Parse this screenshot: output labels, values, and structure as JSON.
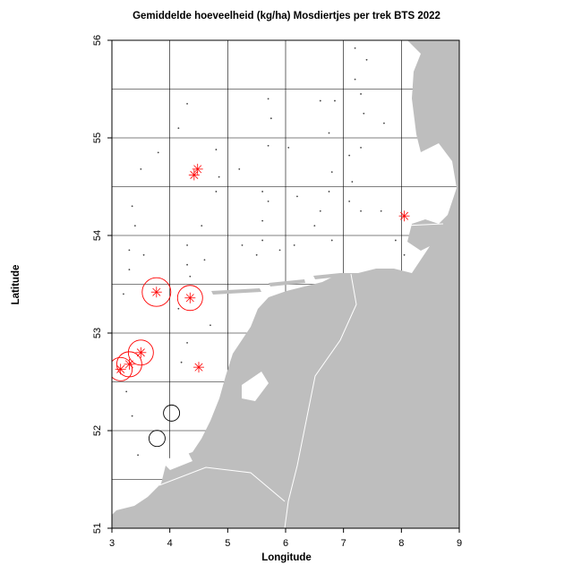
{
  "chart_data": {
    "type": "scatter",
    "title": "Gemiddelde hoeveelheid (kg/ha) Mosdiertjes per trek BTS 2022",
    "xlabel": "Longitude",
    "ylabel": "Latitude",
    "xlim": [
      3,
      9
    ],
    "ylim": [
      51,
      56
    ],
    "xticks": [
      3,
      4,
      5,
      6,
      7,
      8,
      9
    ],
    "yticks": [
      51,
      52,
      53,
      54,
      55,
      56
    ],
    "xgrid": [
      4,
      5,
      6,
      7,
      8
    ],
    "ygrid": [
      51.5,
      52,
      52.5,
      53,
      53.5,
      54,
      54.5,
      55,
      55.5
    ],
    "grid": true,
    "series": [
      {
        "color": "#444444",
        "x": [
          7.2,
          7.4,
          7.2,
          7.3,
          7.35,
          7.7,
          6.6,
          6.85,
          5.7,
          5.75,
          4.3,
          4.15,
          5.7,
          6.05,
          6.75,
          7.1,
          7.3,
          6.8,
          7.15,
          3.8,
          3.5,
          5.2,
          4.8,
          4.85,
          4.8,
          5.6,
          5.7,
          6.2,
          6.75,
          7.1,
          6.6,
          7.3,
          5.6,
          6.5,
          7.65,
          3.35,
          3.4,
          3.3,
          3.55,
          3.3,
          4.3,
          4.3,
          4.6,
          4.55,
          5.25,
          5.6,
          5.9,
          5.5,
          6.15,
          6.8,
          7.9,
          8.05,
          3.2,
          4.35,
          4.15,
          4.3,
          4.7,
          4.2,
          3.25,
          3.35,
          3.45
        ],
        "y": [
          55.92,
          55.8,
          55.6,
          55.45,
          55.25,
          55.15,
          55.38,
          55.38,
          55.4,
          55.2,
          55.35,
          55.1,
          54.92,
          54.9,
          55.05,
          54.82,
          54.9,
          54.65,
          54.55,
          54.85,
          54.68,
          54.68,
          54.88,
          54.6,
          54.45,
          54.45,
          54.35,
          54.4,
          54.45,
          54.35,
          54.25,
          54.25,
          54.15,
          54.1,
          54.25,
          54.3,
          54.1,
          53.85,
          53.8,
          53.65,
          53.9,
          53.7,
          53.75,
          54.1,
          53.9,
          53.95,
          53.85,
          53.8,
          53.9,
          53.95,
          53.95,
          53.8,
          53.4,
          53.58,
          53.25,
          52.9,
          53.08,
          52.7,
          52.4,
          52.15,
          51.75
        ],
        "size": null
      },
      {
        "color": "#ff0000",
        "x": [
          4.48,
          4.42,
          8.05,
          3.77,
          4.35,
          3.5,
          3.3,
          3.15,
          4.5
        ],
        "y": [
          54.68,
          54.62,
          54.2,
          53.42,
          53.36,
          52.8,
          52.68,
          52.63,
          52.65
        ],
        "size": [
          0,
          0,
          0,
          16,
          14,
          14,
          14,
          13,
          0
        ]
      },
      {
        "color": "#000000",
        "x": [
          4.03,
          3.78
        ],
        "y": [
          52.18,
          51.92
        ],
        "size": [
          9,
          9
        ]
      }
    ]
  }
}
